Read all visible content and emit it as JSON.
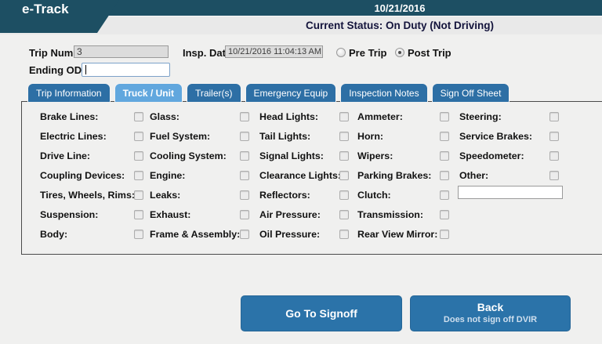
{
  "header": {
    "app_title": "e-Track",
    "date": "10/21/2016",
    "status_text": "Current Status: On Duty (Not Driving)"
  },
  "trip_form": {
    "trip_number": {
      "label": "Trip Number:",
      "value": "3"
    },
    "insp_date": {
      "label": "Insp. Date:",
      "value": "10/21/2016 11:04:13 AM"
    },
    "trip_type": {
      "options": [
        {
          "label": "Pre Trip",
          "selected": false
        },
        {
          "label": "Post Trip",
          "selected": true
        }
      ]
    },
    "ending_odo": {
      "label": "Ending ODO:",
      "value": ""
    }
  },
  "tabs": [
    {
      "label": "Trip Information",
      "active": false
    },
    {
      "label": "Truck / Unit",
      "active": true
    },
    {
      "label": "Trailer(s)",
      "active": false
    },
    {
      "label": "Emergency Equip",
      "active": false
    },
    {
      "label": "Inspection Notes",
      "active": false
    },
    {
      "label": "Sign Off Sheet",
      "active": false
    }
  ],
  "checklist": {
    "columns": [
      [
        "Brake Lines:",
        "Electric Lines:",
        "Drive Line:",
        "Coupling Devices:",
        "Tires, Wheels, Rims:",
        "Suspension:",
        "Body:"
      ],
      [
        "Glass:",
        "Fuel System:",
        "Cooling System:",
        "Engine:",
        "Leaks:",
        "Exhaust:",
        "Frame & Assembly:"
      ],
      [
        "Head Lights:",
        "Tail Lights:",
        "Signal Lights:",
        "Clearance Lights:",
        "Reflectors:",
        "Air Pressure:",
        "Oil Pressure:"
      ],
      [
        "Ammeter:",
        "Horn:",
        "Wipers:",
        "Parking Brakes:",
        "Clutch:",
        "Transmission:",
        "Rear View Mirror:"
      ],
      [
        "Steering:",
        "Service Brakes:",
        "Speedometer:",
        "Other:"
      ]
    ],
    "checkbox_state": "unchecked",
    "other_input_value": ""
  },
  "footer_buttons": {
    "go_to_signoff_label": "Go To Signoff",
    "back_label": "Back",
    "back_subtitle": "Does not sign off DVIR"
  },
  "colors": {
    "header_teal": "#1d4f63",
    "strip_gray": "#e9e9e9",
    "page_bg": "#f0f0ef",
    "tab_blue": "#2d6fa5",
    "tab_active_blue": "#61a7de",
    "button_blue": "#2b73a9",
    "panel_border": "#4a4a4a",
    "field_disabled_bg": "#dcdcdc"
  }
}
